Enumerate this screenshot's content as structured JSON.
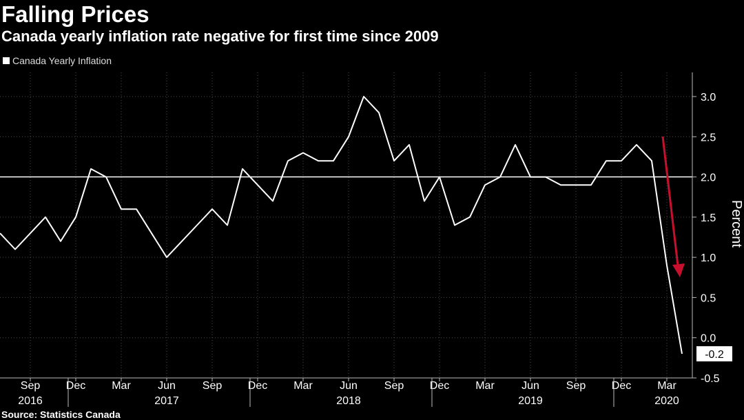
{
  "header": {
    "title": "Falling Prices",
    "subtitle": "Canada yearly inflation rate negative for first time since 2009"
  },
  "legend": {
    "label": "Canada Yearly Inflation"
  },
  "footer": {
    "source": "Source: Statistics Canada"
  },
  "colors": {
    "background": "#000000",
    "line": "#ffffff",
    "grid": "#4a4a4a",
    "arrow": "#c8102e"
  },
  "chart_data": {
    "type": "line",
    "title": "Falling Prices",
    "subtitle": "Canada yearly inflation rate negative for first time since 2009",
    "ylabel": "Percent",
    "xlabel": "",
    "ylim": [
      -0.5,
      3.3
    ],
    "yticks": [
      -0.5,
      0.0,
      0.5,
      1.0,
      1.5,
      2.0,
      2.5,
      3.0
    ],
    "ytick_labels": [
      "-0.5",
      "0.0",
      "0.5",
      "1.0",
      "1.5",
      "2.0",
      "2.5",
      "3.0"
    ],
    "reference_line": 2.0,
    "month_ticks": [
      {
        "label": "Sep",
        "i": 2
      },
      {
        "label": "Dec",
        "i": 5
      },
      {
        "label": "Mar",
        "i": 8
      },
      {
        "label": "Jun",
        "i": 11
      },
      {
        "label": "Sep",
        "i": 14
      },
      {
        "label": "Dec",
        "i": 17
      },
      {
        "label": "Mar",
        "i": 20
      },
      {
        "label": "Jun",
        "i": 23
      },
      {
        "label": "Sep",
        "i": 26
      },
      {
        "label": "Dec",
        "i": 29
      },
      {
        "label": "Mar",
        "i": 32
      },
      {
        "label": "Jun",
        "i": 35
      },
      {
        "label": "Sep",
        "i": 38
      },
      {
        "label": "Dec",
        "i": 41
      },
      {
        "label": "Mar",
        "i": 44
      }
    ],
    "year_labels": [
      {
        "label": "2016",
        "i": 2
      },
      {
        "label": "2017",
        "i": 11
      },
      {
        "label": "2018",
        "i": 23
      },
      {
        "label": "2019",
        "i": 35
      },
      {
        "label": "2020",
        "i": 44
      }
    ],
    "year_boundaries": [
      4.5,
      16.5,
      28.5,
      40.5
    ],
    "series": [
      {
        "name": "Canada Yearly Inflation",
        "x": [
          "Jul 2016",
          "Aug 2016",
          "Sep 2016",
          "Oct 2016",
          "Nov 2016",
          "Dec 2016",
          "Jan 2017",
          "Feb 2017",
          "Mar 2017",
          "Apr 2017",
          "May 2017",
          "Jun 2017",
          "Jul 2017",
          "Aug 2017",
          "Sep 2017",
          "Oct 2017",
          "Nov 2017",
          "Dec 2017",
          "Jan 2018",
          "Feb 2018",
          "Mar 2018",
          "Apr 2018",
          "May 2018",
          "Jun 2018",
          "Jul 2018",
          "Aug 2018",
          "Sep 2018",
          "Oct 2018",
          "Nov 2018",
          "Dec 2018",
          "Jan 2019",
          "Feb 2019",
          "Mar 2019",
          "Apr 2019",
          "May 2019",
          "Jun 2019",
          "Jul 2019",
          "Aug 2019",
          "Sep 2019",
          "Oct 2019",
          "Nov 2019",
          "Dec 2019",
          "Jan 2020",
          "Feb 2020",
          "Mar 2020",
          "Apr 2020"
        ],
        "values": [
          1.3,
          1.1,
          1.3,
          1.5,
          1.2,
          1.5,
          2.1,
          2.0,
          1.6,
          1.6,
          1.3,
          1.0,
          1.2,
          1.4,
          1.6,
          1.4,
          2.1,
          1.9,
          1.7,
          2.2,
          2.3,
          2.2,
          2.2,
          2.5,
          3.0,
          2.8,
          2.2,
          2.4,
          1.7,
          2.0,
          1.4,
          1.5,
          1.9,
          2.0,
          2.4,
          2.0,
          2.0,
          1.9,
          1.9,
          1.9,
          2.2,
          2.2,
          2.4,
          2.2,
          0.9,
          -0.2
        ]
      }
    ],
    "last_value_label": "-0.2",
    "annotation": "red downward arrow indicating drop"
  }
}
